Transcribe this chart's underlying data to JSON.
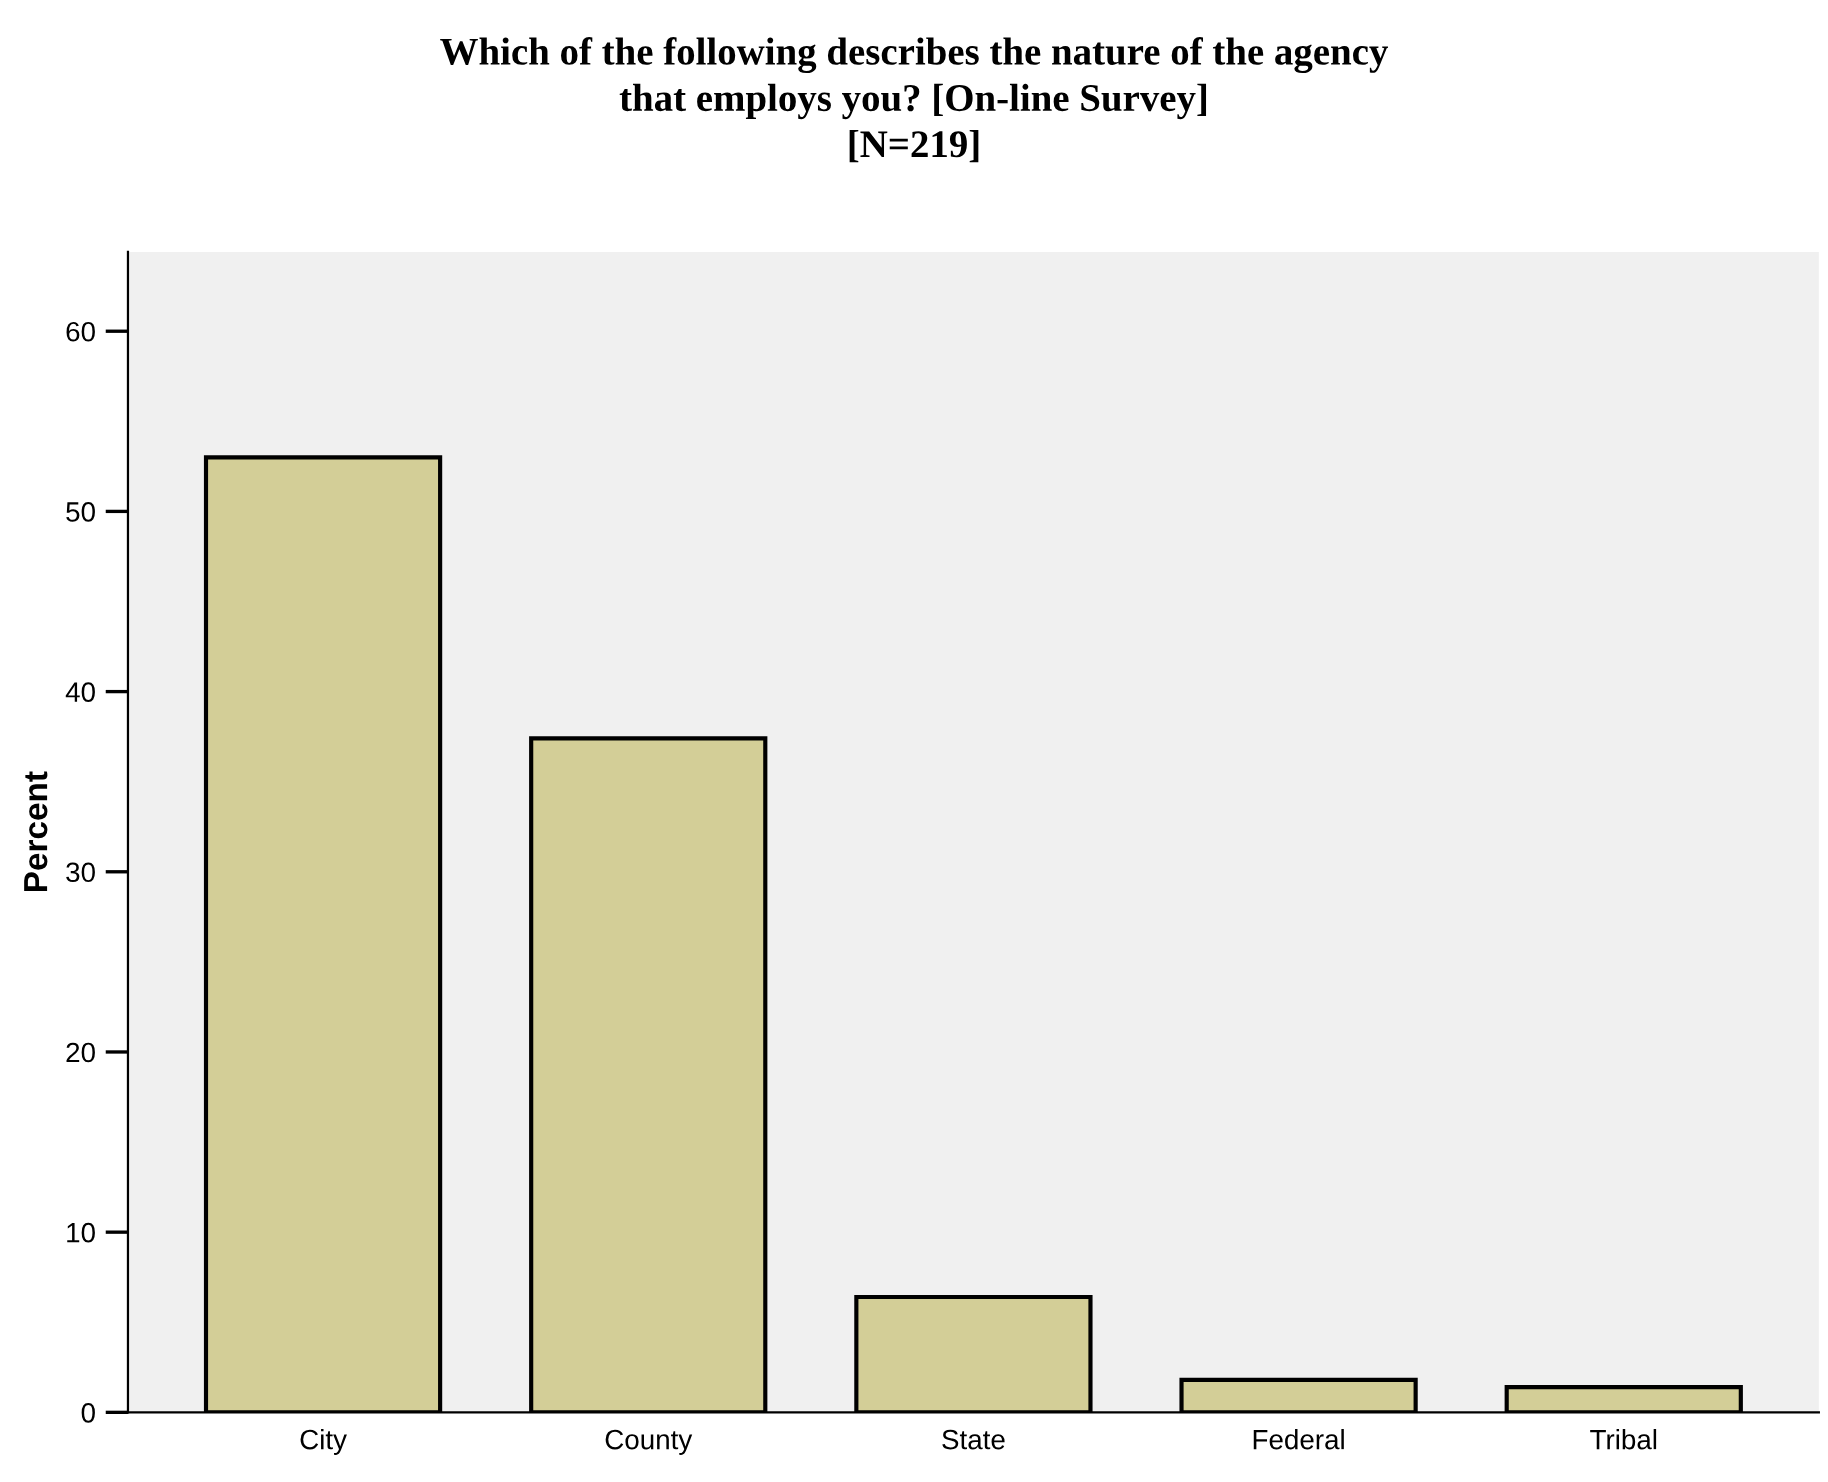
{
  "chart_data": {
    "type": "bar",
    "title": "Which of the following describes the nature of the agency\nthat employs you? [On-line Survey]\n[N=219]",
    "ylabel": "Percent",
    "categories": [
      "City",
      "County",
      "State",
      "Federal",
      "Tribal"
    ],
    "values": [
      53.0,
      37.4,
      6.4,
      1.8,
      1.4
    ],
    "color": "#d3ce97",
    "ylim": [
      0,
      64.4
    ],
    "yticks": [
      0,
      10,
      20,
      30,
      40,
      50,
      60
    ],
    "grid": false,
    "legend": false
  }
}
